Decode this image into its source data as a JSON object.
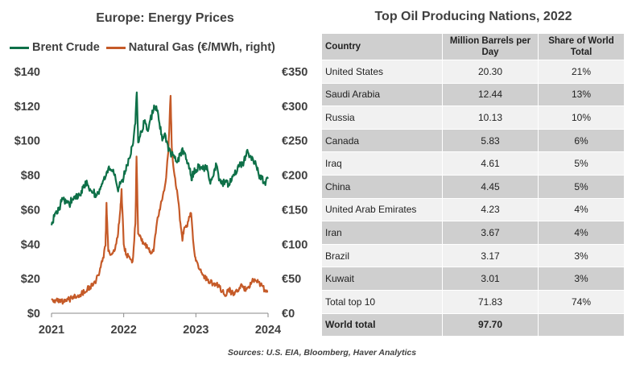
{
  "left_chart": {
    "title": "Europe: Energy Prices",
    "source": "Sources: U.S. EIA, Bloomberg, Haver Analytics",
    "colors": {
      "brent": "#0e7048",
      "gas": "#c55a28"
    }
  },
  "chart_data": [
    {
      "type": "line",
      "title": "Europe: Energy Prices",
      "x_ticks": [
        "2021",
        "2022",
        "2023",
        "2024"
      ],
      "x_range": [
        "2021-01",
        "2024-01"
      ],
      "y_left": {
        "range": [
          0,
          140
        ],
        "ticks": [
          "$0",
          "$20",
          "$40",
          "$60",
          "$80",
          "$100",
          "$120",
          "$140"
        ]
      },
      "y_right": {
        "range": [
          0,
          350
        ],
        "ticks": [
          "€0",
          "€50",
          "€100",
          "€150",
          "€200",
          "€250",
          "€300",
          "€350"
        ]
      },
      "legend": "top",
      "grid": false,
      "series": [
        {
          "name": "Brent Crude",
          "axis": "left",
          "points": [
            [
              "2021-01-01",
              51
            ],
            [
              "2021-01-15",
              56
            ],
            [
              "2021-02-01",
              58
            ],
            [
              "2021-02-15",
              63
            ],
            [
              "2021-03-01",
              66
            ],
            [
              "2021-03-15",
              64
            ],
            [
              "2021-04-01",
              63
            ],
            [
              "2021-04-15",
              66
            ],
            [
              "2021-05-01",
              68
            ],
            [
              "2021-05-15",
              67
            ],
            [
              "2021-06-01",
              71
            ],
            [
              "2021-06-15",
              74
            ],
            [
              "2021-07-01",
              75
            ],
            [
              "2021-07-15",
              72
            ],
            [
              "2021-08-01",
              70
            ],
            [
              "2021-08-15",
              68
            ],
            [
              "2021-09-01",
              72
            ],
            [
              "2021-09-15",
              75
            ],
            [
              "2021-10-01",
              79
            ],
            [
              "2021-10-15",
              84
            ],
            [
              "2021-11-01",
              83
            ],
            [
              "2021-11-15",
              80
            ],
            [
              "2021-12-01",
              72
            ],
            [
              "2021-12-15",
              75
            ],
            [
              "2022-01-01",
              79
            ],
            [
              "2022-01-15",
              86
            ],
            [
              "2022-02-01",
              90
            ],
            [
              "2022-02-15",
              97
            ],
            [
              "2022-03-01",
              110
            ],
            [
              "2022-03-08",
              128
            ],
            [
              "2022-03-15",
              99
            ],
            [
              "2022-04-01",
              105
            ],
            [
              "2022-04-15",
              111
            ],
            [
              "2022-05-01",
              106
            ],
            [
              "2022-05-15",
              112
            ],
            [
              "2022-06-01",
              118
            ],
            [
              "2022-06-15",
              120
            ],
            [
              "2022-07-01",
              110
            ],
            [
              "2022-07-15",
              100
            ],
            [
              "2022-08-01",
              103
            ],
            [
              "2022-08-15",
              94
            ],
            [
              "2022-09-01",
              92
            ],
            [
              "2022-09-15",
              90
            ],
            [
              "2022-10-01",
              88
            ],
            [
              "2022-10-15",
              93
            ],
            [
              "2022-11-01",
              94
            ],
            [
              "2022-11-15",
              89
            ],
            [
              "2022-12-01",
              84
            ],
            [
              "2022-12-10",
              77
            ],
            [
              "2022-12-20",
              82
            ],
            [
              "2023-01-01",
              83
            ],
            [
              "2023-01-15",
              85
            ],
            [
              "2023-02-01",
              84
            ],
            [
              "2023-02-15",
              84
            ],
            [
              "2023-03-01",
              83
            ],
            [
              "2023-03-15",
              75
            ],
            [
              "2023-04-01",
              80
            ],
            [
              "2023-04-15",
              86
            ],
            [
              "2023-05-01",
              77
            ],
            [
              "2023-05-15",
              75
            ],
            [
              "2023-06-01",
              76
            ],
            [
              "2023-06-15",
              75
            ],
            [
              "2023-07-01",
              77
            ],
            [
              "2023-07-15",
              80
            ],
            [
              "2023-08-01",
              85
            ],
            [
              "2023-08-15",
              86
            ],
            [
              "2023-09-01",
              88
            ],
            [
              "2023-09-15",
              94
            ],
            [
              "2023-10-01",
              91
            ],
            [
              "2023-10-15",
              90
            ],
            [
              "2023-11-01",
              86
            ],
            [
              "2023-11-15",
              80
            ],
            [
              "2023-12-01",
              78
            ],
            [
              "2023-12-15",
              76
            ],
            [
              "2024-01-01",
              78
            ]
          ]
        },
        {
          "name": "Natural Gas (€/MWh, right)",
          "axis": "right",
          "points": [
            [
              "2021-01-01",
              21
            ],
            [
              "2021-01-15",
              19
            ],
            [
              "2021-02-01",
              17
            ],
            [
              "2021-02-15",
              16
            ],
            [
              "2021-03-01",
              17
            ],
            [
              "2021-03-15",
              18
            ],
            [
              "2021-04-01",
              20
            ],
            [
              "2021-04-15",
              22
            ],
            [
              "2021-05-01",
              25
            ],
            [
              "2021-05-15",
              26
            ],
            [
              "2021-06-01",
              28
            ],
            [
              "2021-06-15",
              31
            ],
            [
              "2021-07-01",
              35
            ],
            [
              "2021-07-15",
              38
            ],
            [
              "2021-08-01",
              42
            ],
            [
              "2021-08-15",
              48
            ],
            [
              "2021-09-01",
              60
            ],
            [
              "2021-09-15",
              75
            ],
            [
              "2021-10-01",
              98
            ],
            [
              "2021-10-06",
              160
            ],
            [
              "2021-10-15",
              90
            ],
            [
              "2021-11-01",
              85
            ],
            [
              "2021-11-15",
              90
            ],
            [
              "2021-12-01",
              110
            ],
            [
              "2021-12-15",
              150
            ],
            [
              "2021-12-21",
              180
            ],
            [
              "2022-01-01",
              100
            ],
            [
              "2022-01-15",
              85
            ],
            [
              "2022-02-01",
              80
            ],
            [
              "2022-02-15",
              75
            ],
            [
              "2022-03-01",
              130
            ],
            [
              "2022-03-07",
              227
            ],
            [
              "2022-03-15",
              115
            ],
            [
              "2022-04-01",
              105
            ],
            [
              "2022-04-15",
              100
            ],
            [
              "2022-05-01",
              95
            ],
            [
              "2022-05-15",
              90
            ],
            [
              "2022-06-01",
              90
            ],
            [
              "2022-06-15",
              125
            ],
            [
              "2022-07-01",
              150
            ],
            [
              "2022-07-15",
              165
            ],
            [
              "2022-08-01",
              190
            ],
            [
              "2022-08-15",
              235
            ],
            [
              "2022-08-26",
              315
            ],
            [
              "2022-09-01",
              240
            ],
            [
              "2022-09-15",
              200
            ],
            [
              "2022-10-01",
              170
            ],
            [
              "2022-10-15",
              130
            ],
            [
              "2022-10-25",
              105
            ],
            [
              "2022-11-01",
              120
            ],
            [
              "2022-11-15",
              125
            ],
            [
              "2022-12-01",
              140
            ],
            [
              "2022-12-08",
              145
            ],
            [
              "2022-12-20",
              100
            ],
            [
              "2023-01-01",
              76
            ],
            [
              "2023-01-15",
              65
            ],
            [
              "2023-02-01",
              58
            ],
            [
              "2023-02-15",
              52
            ],
            [
              "2023-03-01",
              48
            ],
            [
              "2023-03-15",
              45
            ],
            [
              "2023-04-01",
              43
            ],
            [
              "2023-04-15",
              42
            ],
            [
              "2023-05-01",
              38
            ],
            [
              "2023-05-15",
              32
            ],
            [
              "2023-06-01",
              25
            ],
            [
              "2023-06-15",
              35
            ],
            [
              "2023-07-01",
              30
            ],
            [
              "2023-07-15",
              27
            ],
            [
              "2023-08-01",
              33
            ],
            [
              "2023-08-15",
              40
            ],
            [
              "2023-09-01",
              36
            ],
            [
              "2023-09-15",
              35
            ],
            [
              "2023-10-01",
              38
            ],
            [
              "2023-10-15",
              50
            ],
            [
              "2023-11-01",
              47
            ],
            [
              "2023-11-15",
              45
            ],
            [
              "2023-12-01",
              40
            ],
            [
              "2023-12-15",
              34
            ],
            [
              "2024-01-01",
              31
            ]
          ]
        }
      ]
    },
    {
      "type": "table",
      "title": "Top Oil Producing Nations, 2022",
      "columns": [
        "Country",
        "Million Barrels per Day",
        "Share of World Total"
      ],
      "rows": [
        [
          "United States",
          "20.30",
          "21%"
        ],
        [
          "Saudi Arabia",
          "12.44",
          "13%"
        ],
        [
          "Russia",
          "10.13",
          "10%"
        ],
        [
          "Canada",
          "5.83",
          "6%"
        ],
        [
          "Iraq",
          "4.61",
          "5%"
        ],
        [
          "China",
          "4.45",
          "5%"
        ],
        [
          "United Arab Emirates",
          "4.23",
          "4%"
        ],
        [
          "Iran",
          "3.67",
          "4%"
        ],
        [
          "Brazil",
          "3.17",
          "3%"
        ],
        [
          "Kuwait",
          "3.01",
          "3%"
        ],
        [
          "Total top 10",
          "71.83",
          "74%"
        ],
        [
          "World total",
          "97.70",
          ""
        ]
      ]
    }
  ]
}
